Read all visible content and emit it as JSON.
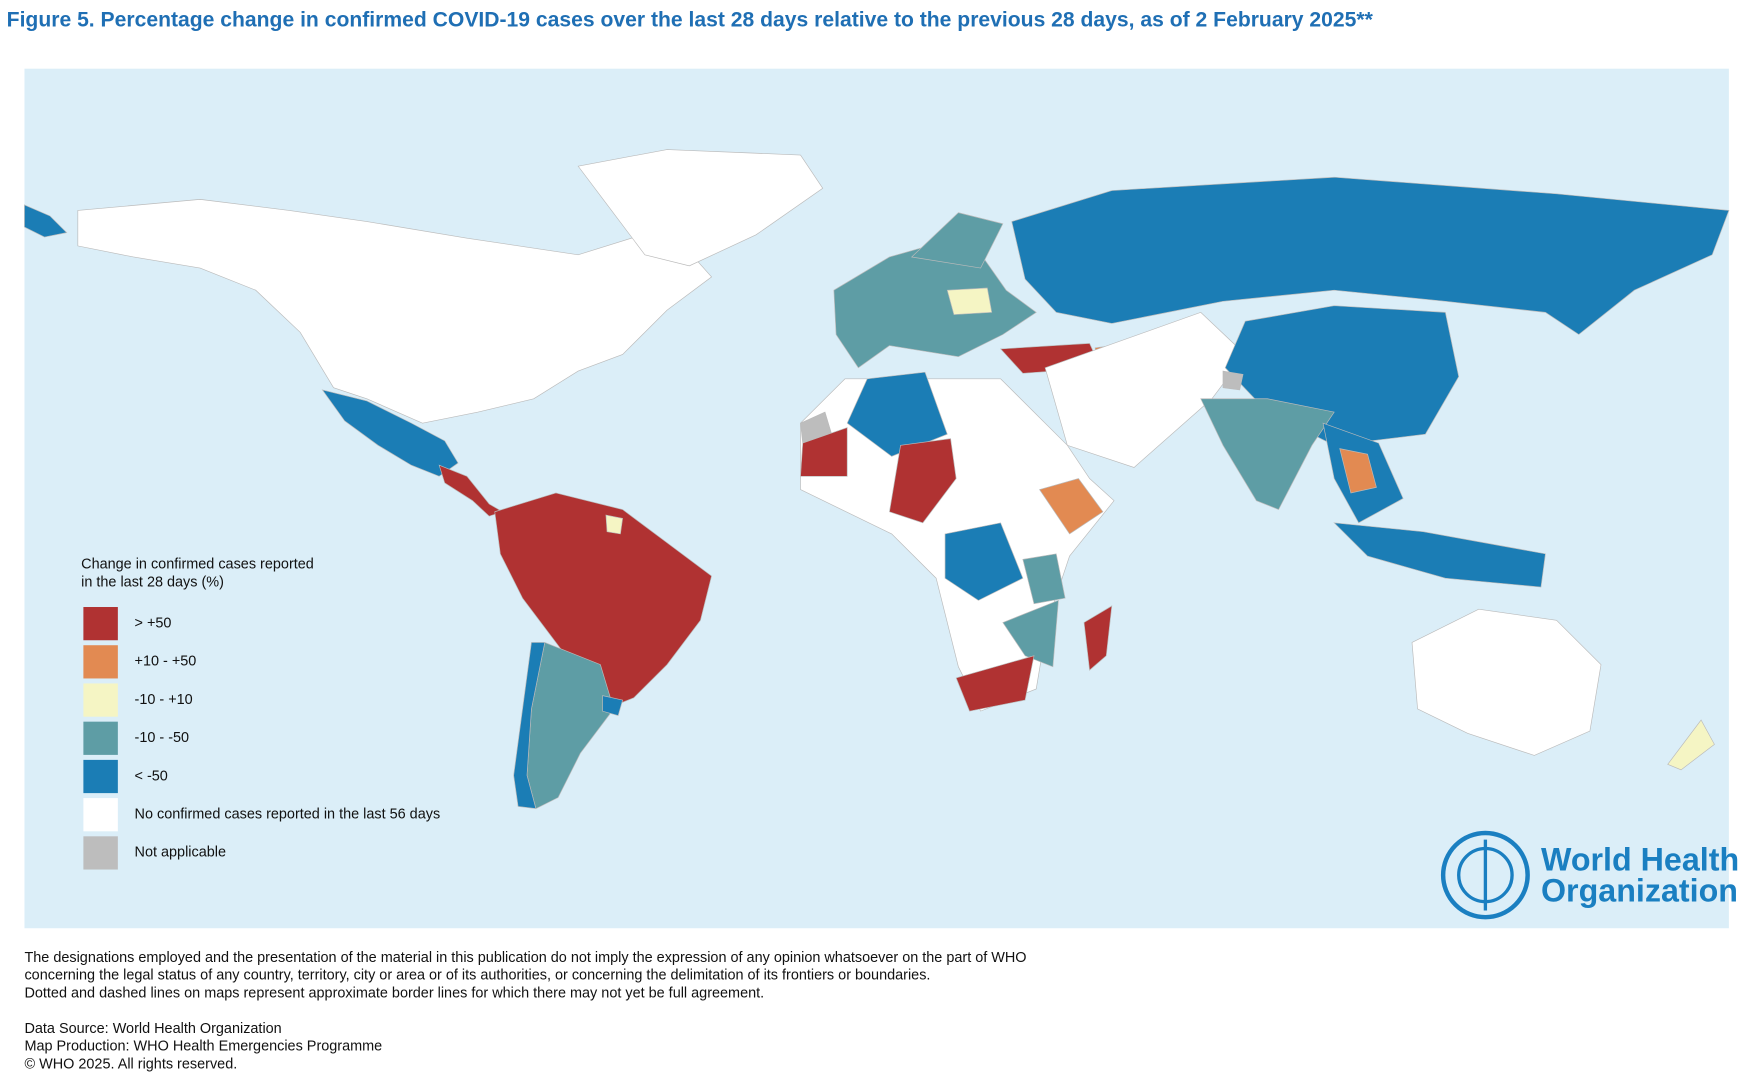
{
  "title": "Figure 5. Percentage change in confirmed COVID-19 cases over the last 28 days relative to the previous 28 days, as of 2 February 2025**",
  "legend": {
    "title": [
      "Change in confirmed cases reported",
      "in the last 28 days (%)"
    ],
    "items": [
      {
        "label": "> +50",
        "color": "#b03232"
      },
      {
        "label": "+10 - +50",
        "color": "#e28a52"
      },
      {
        "label": "-10 - +10",
        "color": "#f5f5c4"
      },
      {
        "label": "-10 - -50",
        "color": "#5e9da5"
      },
      {
        "label": "< -50",
        "color": "#1b7db5"
      },
      {
        "label": "No confirmed cases reported in the last 56 days",
        "color": "#ffffff"
      },
      {
        "label": "Not applicable",
        "color": "#bdbdbd"
      }
    ]
  },
  "logo": [
    "World Health",
    "Organization"
  ],
  "disclaimer": [
    "The designations employed and the presentation of the material in this publication do not imply the expression of any opinion whatsoever on the part of WHO",
    "concerning the legal status of any country, territory, city or area or of its authorities, or concerning the delimitation of its frontiers or boundaries.",
    "Dotted and dashed lines on maps represent approximate border lines for which there may not yet be full agreement."
  ],
  "credits": [
    "Data Source: World Health Organization",
    "Map Production: WHO Health Emergencies Programme",
    "© WHO 2025. All rights reserved."
  ]
}
